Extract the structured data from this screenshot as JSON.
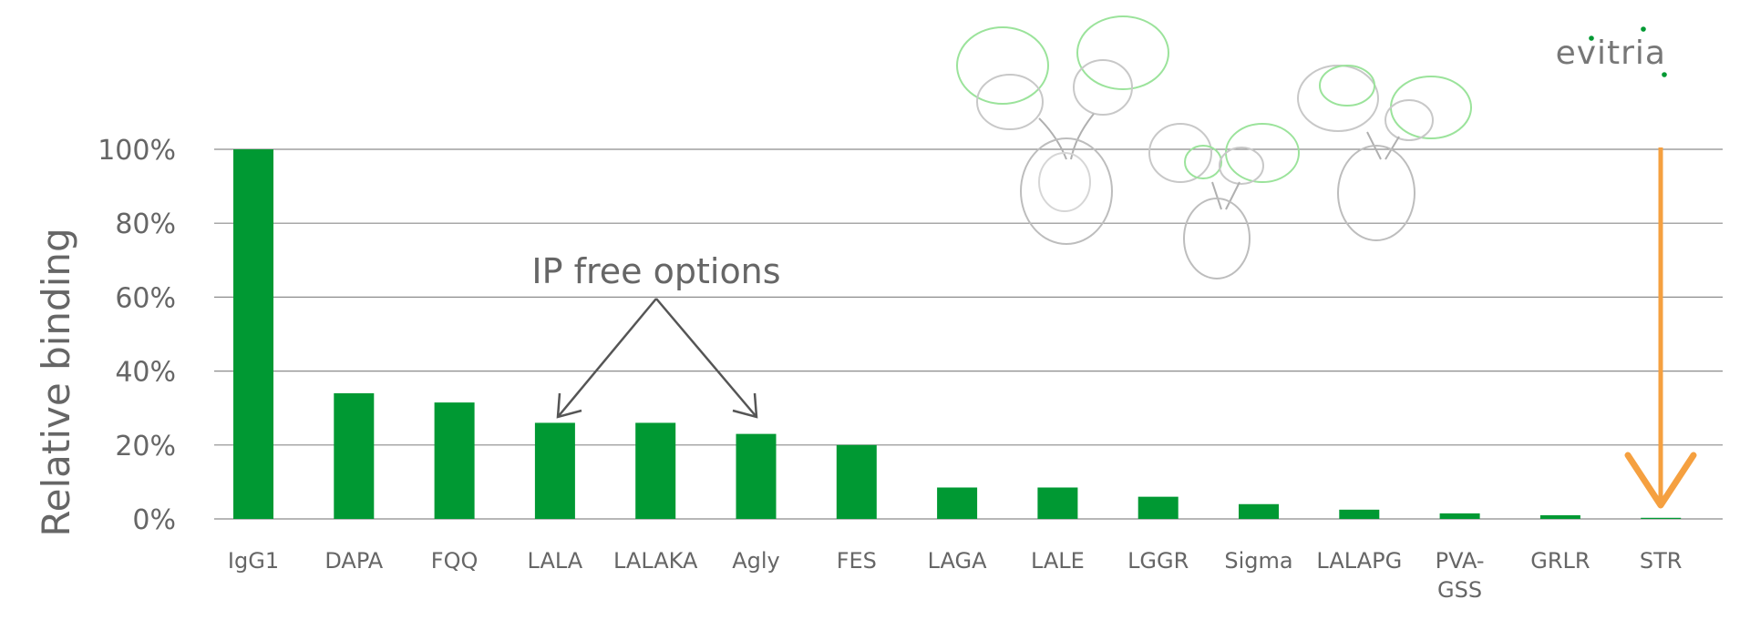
{
  "brand": {
    "name": "evitria",
    "accent": "#009933"
  },
  "chart_data": {
    "type": "bar",
    "categories": [
      "IgG1",
      "DAPA",
      "FQQ",
      "LALA",
      "LALAKA",
      "Agly",
      "FES",
      "LAGA",
      "LALE",
      "LGGR",
      "Sigma",
      "LALAPG",
      "PVA-GSS",
      "GRLR",
      "STR"
    ],
    "values": [
      100,
      34,
      31.5,
      26,
      26,
      23,
      20,
      8.5,
      8.5,
      6,
      4,
      2.5,
      1.5,
      1,
      0.3
    ],
    "ylabel": "Relative binding",
    "xlabel": "",
    "ylim": [
      0,
      100
    ],
    "yticks": [
      "0%",
      "20%",
      "40%",
      "60%",
      "80%",
      "100%"
    ],
    "grid": true,
    "bar_color": "#009933",
    "annotation": {
      "text": "IP free options",
      "targets": [
        "LALA",
        "Agly"
      ]
    },
    "highlight": {
      "category": "STR",
      "color": "#F5A040",
      "style": "down-arrow"
    }
  }
}
